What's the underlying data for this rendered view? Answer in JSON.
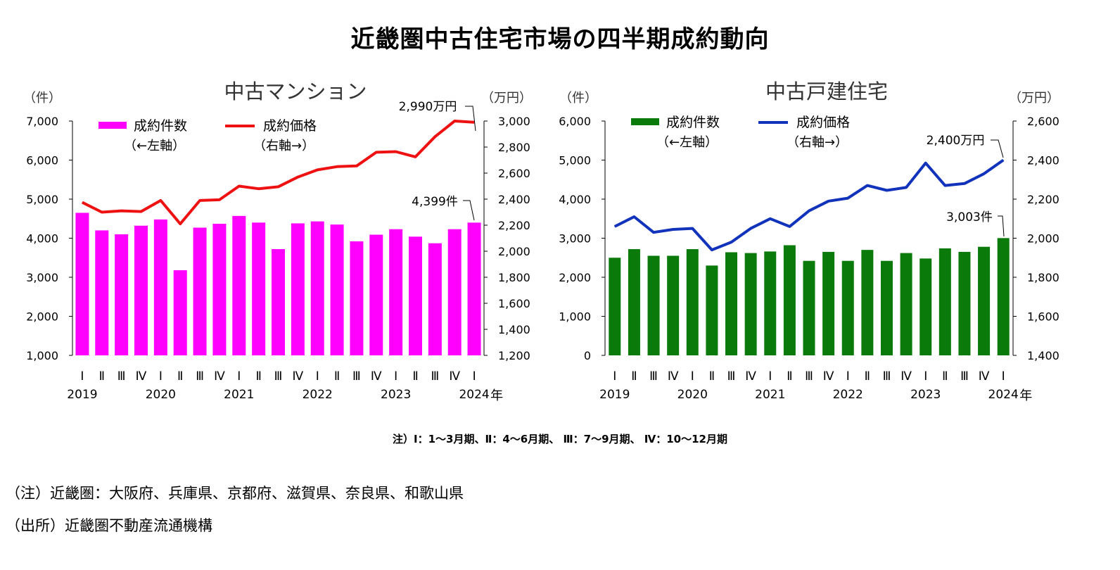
{
  "title": "近畿圏中古住宅市場の四半期成約動向",
  "chart_data": [
    {
      "type": "bar",
      "title": "中古マンション",
      "left_unit": "（件）",
      "right_unit": "（万円）",
      "year_suffix": "年",
      "categories": [
        "Ⅰ",
        "Ⅱ",
        "Ⅲ",
        "Ⅳ",
        "Ⅰ",
        "Ⅱ",
        "Ⅲ",
        "Ⅳ",
        "Ⅰ",
        "Ⅱ",
        "Ⅲ",
        "Ⅳ",
        "Ⅰ",
        "Ⅱ",
        "Ⅲ",
        "Ⅳ",
        "Ⅰ",
        "Ⅱ",
        "Ⅲ",
        "Ⅳ",
        "Ⅰ"
      ],
      "years": [
        {
          "label": "2019",
          "index": 0
        },
        {
          "label": "2020",
          "index": 4
        },
        {
          "label": "2021",
          "index": 8
        },
        {
          "label": "2022",
          "index": 12
        },
        {
          "label": "2023",
          "index": 16
        },
        {
          "label": "2024",
          "index": 20
        }
      ],
      "series": [
        {
          "name": "成約件数",
          "sub": "（←左軸）",
          "axis": "left",
          "kind": "bar",
          "color": "#ff00ff",
          "values": [
            4650,
            4200,
            4100,
            4320,
            4480,
            3180,
            4270,
            4370,
            4570,
            4400,
            3720,
            4380,
            4430,
            4350,
            3920,
            4090,
            4230,
            4040,
            3870,
            4230,
            4399
          ]
        },
        {
          "name": "成約価格",
          "sub": "（右軸→）",
          "axis": "right",
          "kind": "line",
          "color": "#ee1111",
          "values": [
            2375,
            2300,
            2310,
            2305,
            2390,
            2210,
            2390,
            2395,
            2500,
            2480,
            2495,
            2570,
            2625,
            2650,
            2655,
            2760,
            2765,
            2725,
            2880,
            3000,
            2990
          ]
        }
      ],
      "left_axis": {
        "min": 1000,
        "max": 7000,
        "step": 1000,
        "ticks": [
          "1,000",
          "2,000",
          "3,000",
          "4,000",
          "5,000",
          "6,000",
          "7,000"
        ]
      },
      "right_axis": {
        "min": 1200,
        "max": 3000,
        "step": 200,
        "ticks": [
          "1,200",
          "1,400",
          "1,600",
          "1,800",
          "2,000",
          "2,200",
          "2,400",
          "2,600",
          "2,800",
          "3,000"
        ]
      },
      "annotations": {
        "price": "2,990万円",
        "count": "4,399件"
      }
    },
    {
      "type": "bar",
      "title": "中古戸建住宅",
      "left_unit": "（件）",
      "right_unit": "（万円）",
      "year_suffix": "年",
      "categories": [
        "Ⅰ",
        "Ⅱ",
        "Ⅲ",
        "Ⅳ",
        "Ⅰ",
        "Ⅱ",
        "Ⅲ",
        "Ⅳ",
        "Ⅰ",
        "Ⅱ",
        "Ⅲ",
        "Ⅳ",
        "Ⅰ",
        "Ⅱ",
        "Ⅲ",
        "Ⅳ",
        "Ⅰ",
        "Ⅱ",
        "Ⅲ",
        "Ⅳ",
        "Ⅰ"
      ],
      "years": [
        {
          "label": "2019",
          "index": 0
        },
        {
          "label": "2020",
          "index": 4
        },
        {
          "label": "2021",
          "index": 8
        },
        {
          "label": "2022",
          "index": 12
        },
        {
          "label": "2023",
          "index": 16
        },
        {
          "label": "2024",
          "index": 20
        }
      ],
      "series": [
        {
          "name": "成約件数",
          "sub": "（←左軸）",
          "axis": "left",
          "kind": "bar",
          "color": "#0a7a0a",
          "values": [
            2500,
            2720,
            2550,
            2550,
            2720,
            2300,
            2640,
            2620,
            2660,
            2820,
            2420,
            2650,
            2420,
            2700,
            2420,
            2620,
            2480,
            2740,
            2650,
            2780,
            3003
          ]
        },
        {
          "name": "成約価格",
          "sub": "（右軸→）",
          "axis": "right",
          "kind": "line",
          "color": "#1133bb",
          "values": [
            2060,
            2110,
            2030,
            2045,
            2050,
            1940,
            1980,
            2050,
            2100,
            2060,
            2140,
            2190,
            2205,
            2270,
            2245,
            2260,
            2385,
            2270,
            2280,
            2330,
            2400
          ]
        }
      ],
      "left_axis": {
        "min": 0,
        "max": 6000,
        "step": 1000,
        "ticks": [
          "0",
          "1,000",
          "2,000",
          "3,000",
          "4,000",
          "5,000",
          "6,000"
        ]
      },
      "right_axis": {
        "min": 1400,
        "max": 2600,
        "step": 200,
        "ticks": [
          "1,400",
          "1,600",
          "1,800",
          "2,000",
          "2,200",
          "2,400",
          "2,600"
        ]
      },
      "annotations": {
        "price": "2,400万円",
        "count": "3,003件"
      }
    }
  ],
  "quarter_note": "注）Ⅰ：1～3月期、Ⅱ：4～6月期、 Ⅲ：7～9月期、 Ⅳ：10～12月期",
  "notes": [
    "（注）近畿圏：大阪府、兵庫県、京都府、滋賀県、奈良県、和歌山県",
    "（出所）近畿圏不動産流通機構"
  ]
}
